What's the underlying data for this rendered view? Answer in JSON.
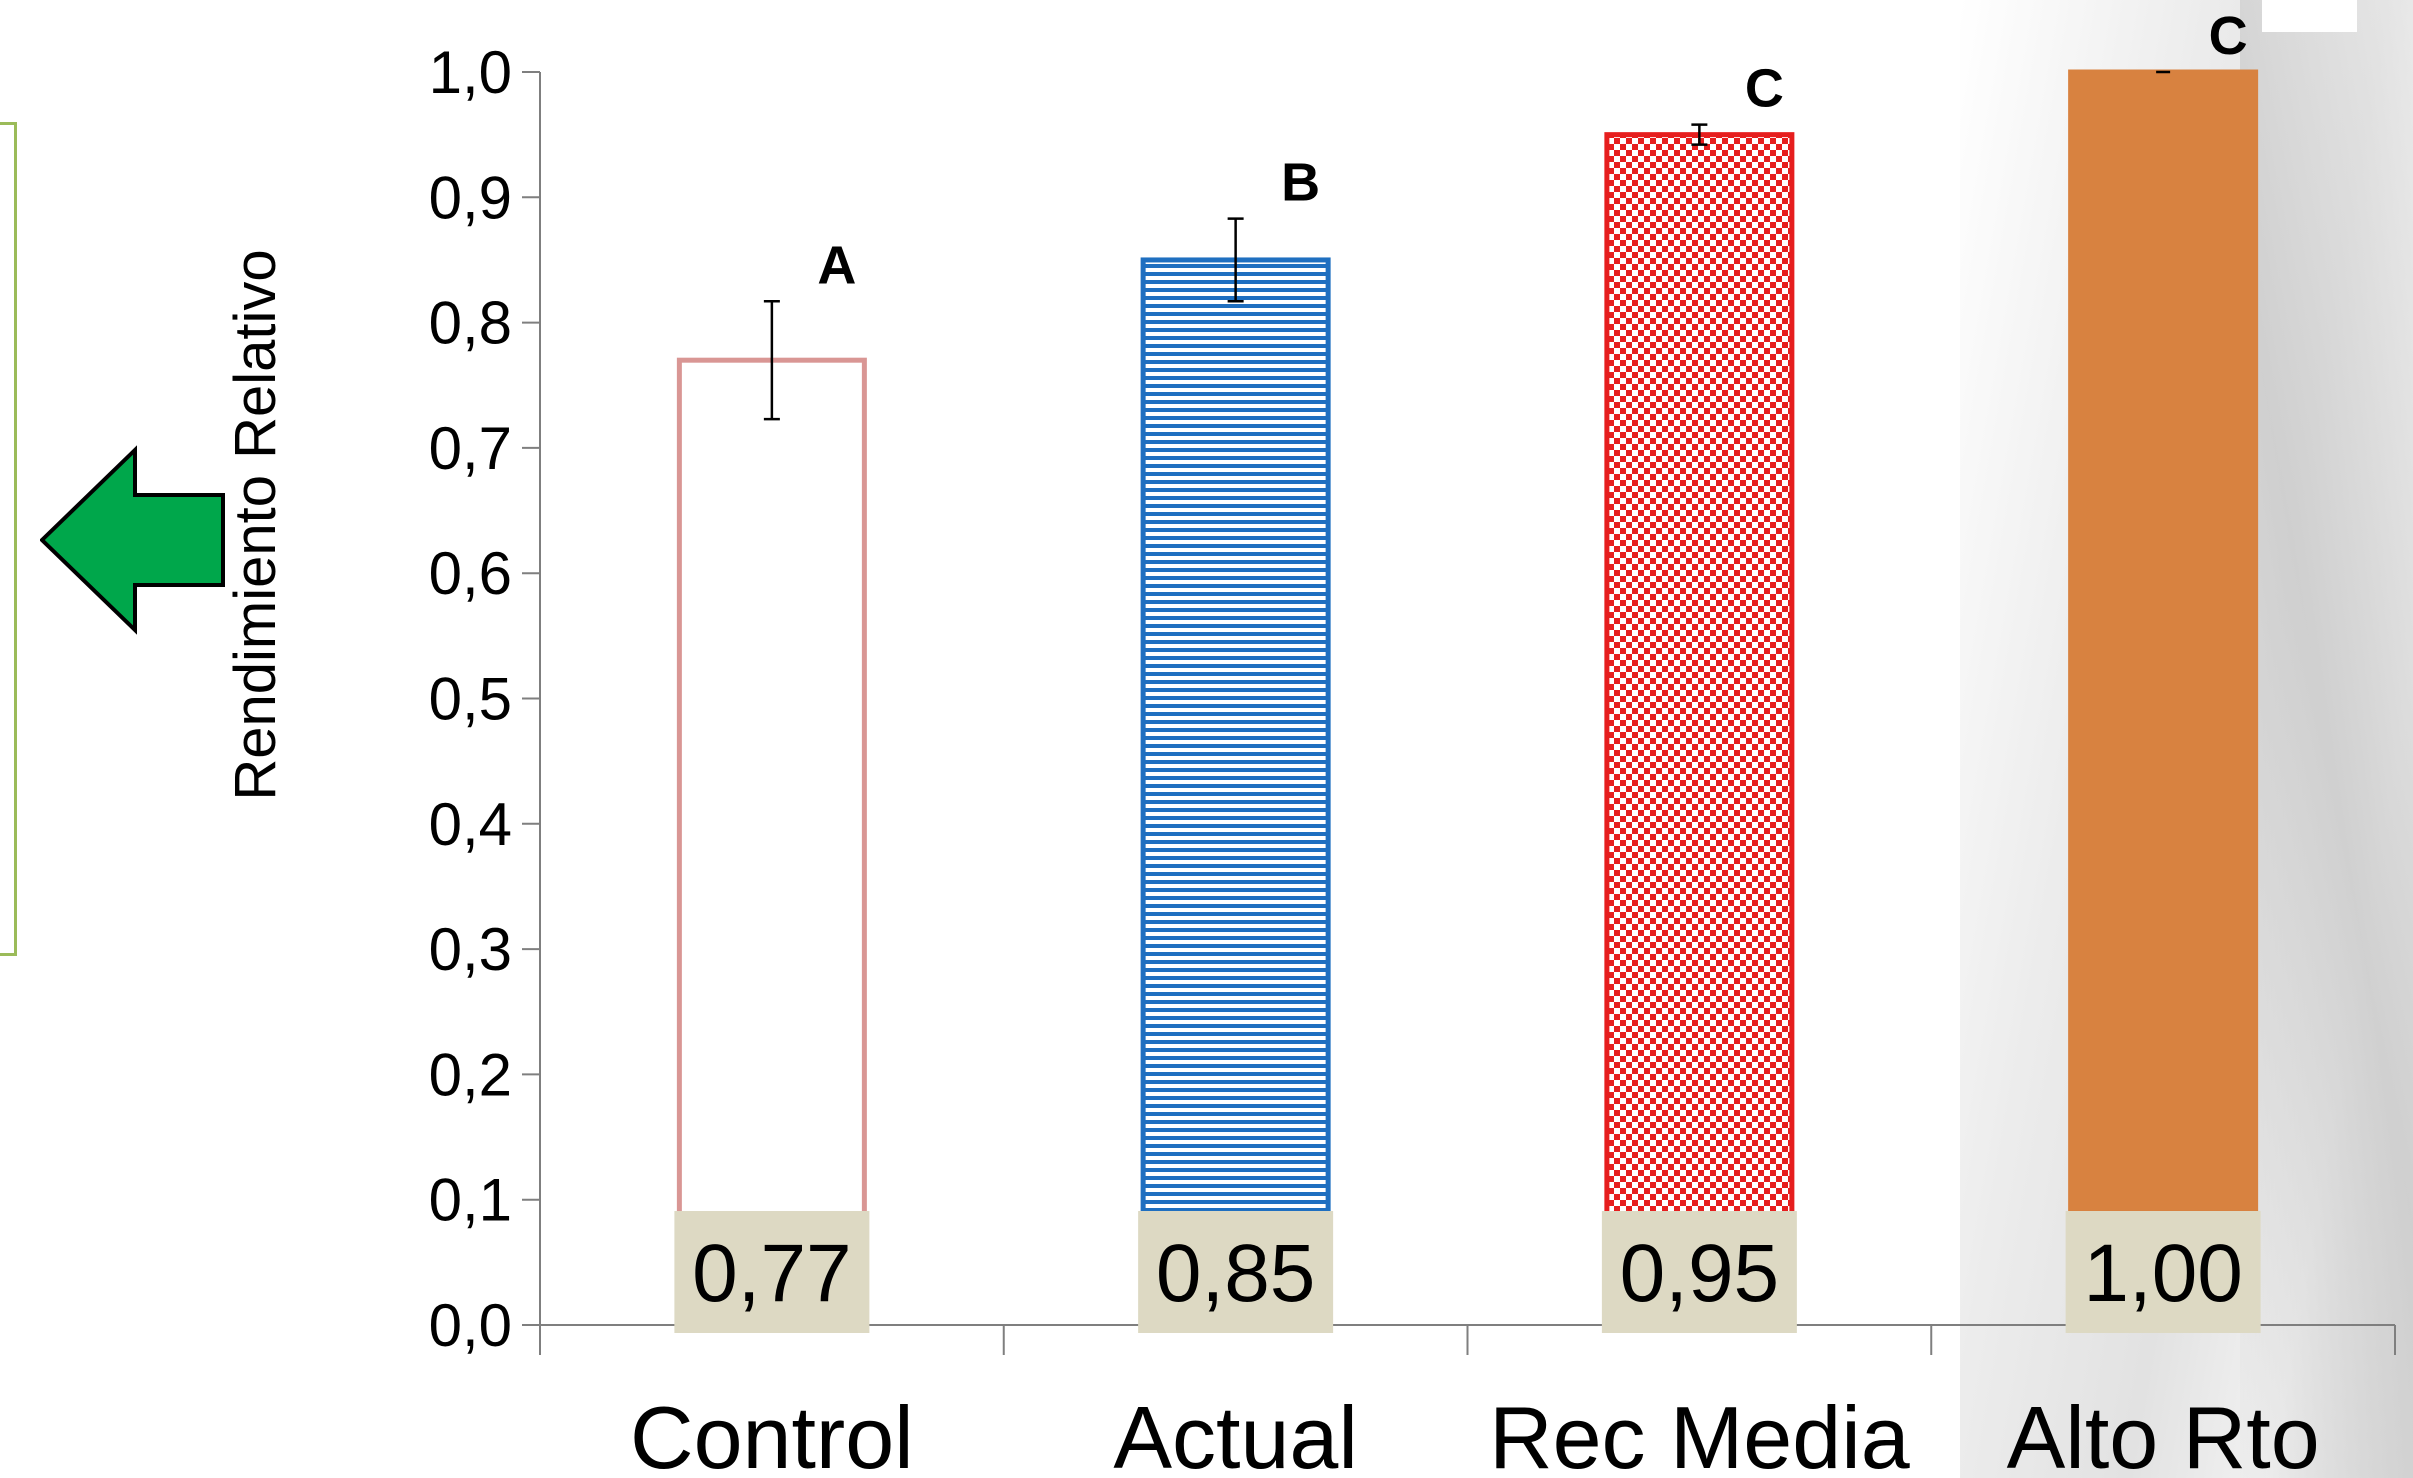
{
  "chart_data": {
    "type": "bar",
    "title": "",
    "xlabel": "",
    "ylabel": "Rendimiento Relativo",
    "ylim": [
      0,
      1.0
    ],
    "y_ticks": [
      "0,0",
      "0,1",
      "0,2",
      "0,3",
      "0,4",
      "0,5",
      "0,6",
      "0,7",
      "0,8",
      "0,9",
      "1,0"
    ],
    "categories": [
      "Control",
      "Actual",
      "Rec Media",
      "Alto Rto"
    ],
    "values": [
      0.77,
      0.85,
      0.95,
      1.0
    ],
    "value_labels": [
      "0,77",
      "0,85",
      "0,95",
      "1,00"
    ],
    "error": [
      0.047,
      0.033,
      0.008,
      0.0
    ],
    "significance": [
      "A",
      "B",
      "C",
      "C"
    ],
    "bar_styles": [
      {
        "fill": "none",
        "stroke": "#d99694"
      },
      {
        "fill": "horizontal-lines",
        "stroke": "#1f6fc0",
        "pattern_color": "#1f6fc0"
      },
      {
        "fill": "checker",
        "stroke": "#e61e1e",
        "pattern_color": "#e61e1e"
      },
      {
        "fill": "solid",
        "stroke": "#d88240",
        "fill_color": "#d88240"
      }
    ],
    "label_box_color": "#ddd9c3",
    "grid": false
  },
  "decorations": {
    "arrow": {
      "icon": "left-arrow-icon",
      "color": "#00a74b"
    },
    "side_box_border": "#9bbb59"
  }
}
